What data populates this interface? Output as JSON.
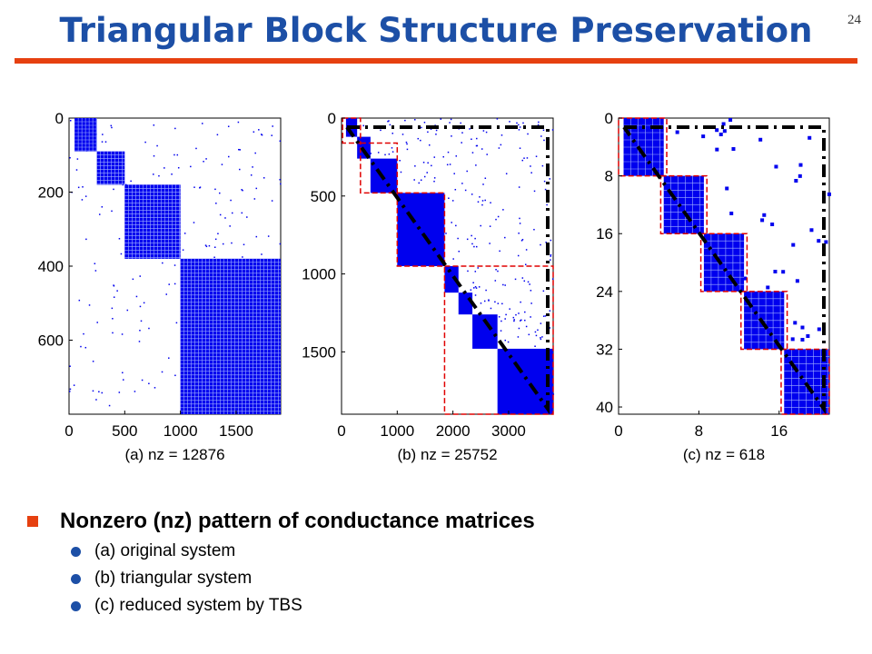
{
  "slide": {
    "title": "Triangular Block Structure Preservation",
    "number": "24",
    "colors": {
      "title": "#1c4fa6",
      "accent": "#e64010",
      "blue": "#0000ee",
      "dashed_box": "#e00000"
    }
  },
  "bullets": {
    "main": "Nonzero (nz) pattern of conductance matrices",
    "items": [
      "(a) original system",
      "(b) triangular system",
      "(c) reduced system by TBS"
    ]
  },
  "chart_data": [
    {
      "type": "heatmap",
      "subtype": "spy",
      "xlabel": "(a) nz = 12876",
      "nz": 12876,
      "xticks": [
        "0",
        "500",
        "1000",
        "1500"
      ],
      "yticks": [
        "0",
        "200",
        "400",
        "600"
      ],
      "xlim": [
        0,
        1900
      ],
      "ylim": [
        0,
        800
      ],
      "dense_blocks": [
        {
          "x": [
            50,
            250
          ],
          "y": [
            0,
            90
          ]
        },
        {
          "x": [
            250,
            500
          ],
          "y": [
            90,
            180
          ]
        },
        {
          "x": [
            500,
            1000
          ],
          "y": [
            180,
            380
          ]
        },
        {
          "x": [
            1000,
            1900
          ],
          "y": [
            380,
            800
          ]
        }
      ],
      "scatter": "sparse"
    },
    {
      "type": "heatmap",
      "subtype": "spy",
      "xlabel": "(b) nz = 25752",
      "nz": 25752,
      "xticks": [
        "0",
        "1000",
        "2000",
        "3000"
      ],
      "yticks": [
        "0",
        "500",
        "1000",
        "1500"
      ],
      "xlim": [
        0,
        3800
      ],
      "ylim": [
        0,
        1900
      ],
      "dense_blocks": [
        {
          "x": [
            80,
            280
          ],
          "y": [
            0,
            120
          ]
        },
        {
          "x": [
            280,
            520
          ],
          "y": [
            120,
            260
          ]
        },
        {
          "x": [
            520,
            1000
          ],
          "y": [
            260,
            480
          ]
        },
        {
          "x": [
            1000,
            1850
          ],
          "y": [
            480,
            950
          ]
        },
        {
          "x": [
            1850,
            2100
          ],
          "y": [
            950,
            1120
          ]
        },
        {
          "x": [
            2100,
            2350
          ],
          "y": [
            1120,
            1260
          ]
        },
        {
          "x": [
            2350,
            2800
          ],
          "y": [
            1260,
            1480
          ]
        },
        {
          "x": [
            2800,
            3800
          ],
          "y": [
            1480,
            1900
          ]
        }
      ],
      "dashed_boxes": [
        {
          "x": [
            20,
            340
          ],
          "y": [
            0,
            160
          ]
        },
        {
          "x": [
            340,
            1000
          ],
          "y": [
            160,
            480
          ]
        },
        {
          "x": [
            1000,
            1850
          ],
          "y": [
            480,
            950
          ]
        },
        {
          "x": [
            1850,
            3800
          ],
          "y": [
            950,
            1900
          ]
        }
      ],
      "scatter": "upper triangular"
    },
    {
      "type": "heatmap",
      "subtype": "spy",
      "xlabel": "(c) nz = 618",
      "nz": 618,
      "xticks": [
        "0",
        "8",
        "16"
      ],
      "yticks": [
        "0",
        "8",
        "16",
        "24",
        "32",
        "40"
      ],
      "xlim": [
        0,
        21
      ],
      "ylim": [
        0,
        41
      ],
      "dense_blocks": [
        {
          "x": [
            0.5,
            4.5
          ],
          "y": [
            0,
            8
          ]
        },
        {
          "x": [
            4.5,
            8.5
          ],
          "y": [
            8,
            16
          ]
        },
        {
          "x": [
            8.5,
            12.5
          ],
          "y": [
            16,
            24
          ]
        },
        {
          "x": [
            12.5,
            16.5
          ],
          "y": [
            24,
            32
          ]
        },
        {
          "x": [
            16.5,
            21
          ],
          "y": [
            32,
            41
          ]
        }
      ],
      "dashed_boxes": [
        {
          "x": [
            0,
            4.8
          ],
          "y": [
            0,
            8
          ]
        },
        {
          "x": [
            4.2,
            8.8
          ],
          "y": [
            8,
            16
          ]
        },
        {
          "x": [
            8.2,
            12.8
          ],
          "y": [
            16,
            24
          ]
        },
        {
          "x": [
            12.2,
            16.8
          ],
          "y": [
            24,
            32
          ]
        },
        {
          "x": [
            16.2,
            21
          ],
          "y": [
            32,
            41
          ]
        }
      ],
      "scatter": "upper triangular"
    }
  ]
}
